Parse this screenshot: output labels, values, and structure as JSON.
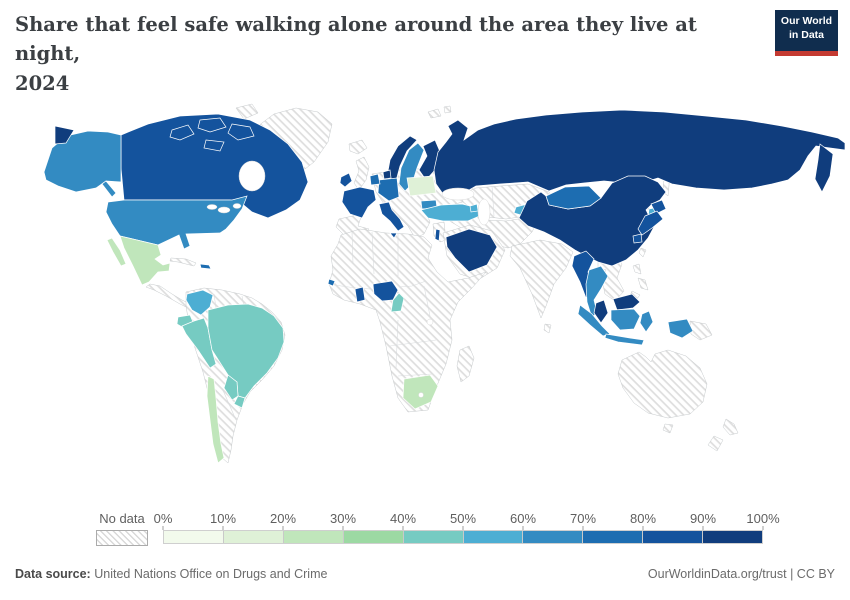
{
  "header": {
    "title_line1": "Share that feel safe walking alone around the area they live at night,",
    "title_line2": "2024",
    "title_full": "Share that feel safe walking alone around the area they live at night, 2024",
    "logo": {
      "line1": "Our World",
      "line2": "in Data",
      "bg_color": "#102d4e",
      "accent_color": "#c43a31"
    }
  },
  "legend": {
    "no_data_label": "No data",
    "tick_labels": [
      "0%",
      "10%",
      "20%",
      "30%",
      "40%",
      "50%",
      "60%",
      "70%",
      "80%",
      "90%",
      "100%"
    ],
    "bin_colors": [
      "#f2faec",
      "#dff1d7",
      "#c0e6bb",
      "#9cd9a3",
      "#76cbc2",
      "#4daed3",
      "#338bc2",
      "#1d6db1",
      "#14539d",
      "#103d7d"
    ],
    "no_data_hatch_color": "#d9d9d9"
  },
  "footer": {
    "source_label": "Data source:",
    "source_value": "United Nations Office on Drugs and Crime",
    "right_text": "OurWorldinData.org/trust | CC BY"
  },
  "chart_data": {
    "type": "choropleth_map",
    "title": "Share that feel safe walking alone around the area they live at night, 2024",
    "unit": "%",
    "legend_position": "bottom",
    "bin_ranges": [
      "0-10%",
      "10-20%",
      "20-30%",
      "30-40%",
      "40-50%",
      "50-60%",
      "60-70%",
      "70-80%",
      "80-90%",
      "90-100%"
    ],
    "countries": [
      {
        "name": "Canada",
        "range": "80-90%",
        "bin": 8
      },
      {
        "name": "United States",
        "range": "60-70%",
        "bin": 6
      },
      {
        "name": "Mexico",
        "range": "20-30%",
        "bin": 2
      },
      {
        "name": "Dominican Republic",
        "range": "70-80%",
        "bin": 7
      },
      {
        "name": "Colombia",
        "range": "50-60%",
        "bin": 5
      },
      {
        "name": "Ecuador",
        "range": "40-50%",
        "bin": 4
      },
      {
        "name": "Peru",
        "range": "40-50%",
        "bin": 4
      },
      {
        "name": "Brazil",
        "range": "40-50%",
        "bin": 4
      },
      {
        "name": "Bolivia",
        "range": "40-50%",
        "bin": 4
      },
      {
        "name": "Paraguay",
        "range": "40-50%",
        "bin": 4
      },
      {
        "name": "Chile",
        "range": "20-30%",
        "bin": 2
      },
      {
        "name": "Ireland",
        "range": "80-90%",
        "bin": 8
      },
      {
        "name": "France",
        "range": "80-90%",
        "bin": 8
      },
      {
        "name": "Netherlands",
        "range": "70-80%",
        "bin": 7
      },
      {
        "name": "Germany",
        "range": "70-80%",
        "bin": 7
      },
      {
        "name": "Denmark",
        "range": "90-100%",
        "bin": 9
      },
      {
        "name": "Norway",
        "range": "90-100%",
        "bin": 9
      },
      {
        "name": "Sweden",
        "range": "60-70%",
        "bin": 6
      },
      {
        "name": "Finland",
        "range": "90-100%",
        "bin": 9
      },
      {
        "name": "Estonia",
        "range": "60-70%",
        "bin": 6
      },
      {
        "name": "Latvia",
        "range": "60-70%",
        "bin": 6
      },
      {
        "name": "Poland",
        "range": "10-20%",
        "bin": 1
      },
      {
        "name": "Italy",
        "range": "80-90%",
        "bin": 8
      },
      {
        "name": "Bulgaria",
        "range": "60-70%",
        "bin": 6
      },
      {
        "name": "Turkey",
        "range": "50-60%",
        "bin": 5
      },
      {
        "name": "Israel",
        "range": "80-90%",
        "bin": 8
      },
      {
        "name": "Azerbaijan",
        "range": "50-60%",
        "bin": 5
      },
      {
        "name": "Saudi Arabia",
        "range": "90-100%",
        "bin": 9
      },
      {
        "name": "Russia",
        "range": "90-100%",
        "bin": 9
      },
      {
        "name": "Kyrgyzstan",
        "range": "50-60%",
        "bin": 5
      },
      {
        "name": "Mongolia",
        "range": "70-80%",
        "bin": 7
      },
      {
        "name": "China",
        "range": "90-100%",
        "bin": 9
      },
      {
        "name": "South Korea",
        "range": "50-60%",
        "bin": 5
      },
      {
        "name": "Japan",
        "range": "80-90%",
        "bin": 8
      },
      {
        "name": "Myanmar",
        "range": "80-90%",
        "bin": 8
      },
      {
        "name": "Thailand",
        "range": "60-70%",
        "bin": 6
      },
      {
        "name": "Malaysia",
        "range": "90-100%",
        "bin": 9
      },
      {
        "name": "Indonesia",
        "range": "60-70%",
        "bin": 6
      },
      {
        "name": "Sierra Leone",
        "range": "70-80%",
        "bin": 7
      },
      {
        "name": "Ghana",
        "range": "80-90%",
        "bin": 8
      },
      {
        "name": "Nigeria",
        "range": "80-90%",
        "bin": 8
      },
      {
        "name": "Cameroon",
        "range": "40-50%",
        "bin": 4
      },
      {
        "name": "South Africa",
        "range": "20-30%",
        "bin": 2
      }
    ],
    "no_data_regions": [
      "Greenland",
      "United Kingdom",
      "Iceland",
      "Spain",
      "Portugal",
      "Switzerland",
      "Austria",
      "Ukraine",
      "Belarus",
      "Romania",
      "Greece",
      "Kazakhstan",
      "Uzbekistan",
      "Turkmenistan",
      "Iran",
      "Iraq",
      "Afghanistan",
      "Pakistan",
      "India",
      "Vietnam",
      "Laos",
      "Cambodia",
      "North Korea",
      "Philippines",
      "Papua New Guinea",
      "Australia",
      "New Zealand",
      "Egypt",
      "Libya",
      "Algeria",
      "Morocco",
      "Sudan",
      "Ethiopia",
      "Kenya",
      "DR Congo",
      "Angola",
      "Madagascar",
      "Argentina",
      "Venezuela",
      "Guatemala",
      "Cuba",
      "Guyana"
    ]
  }
}
